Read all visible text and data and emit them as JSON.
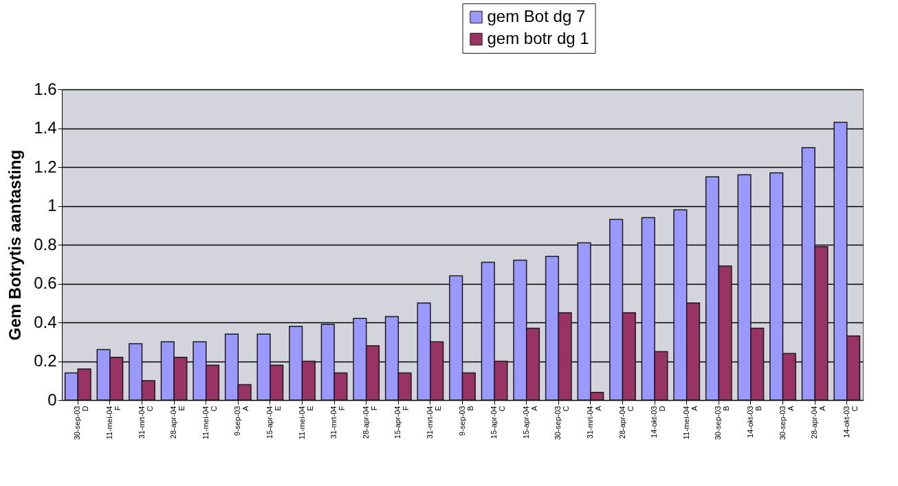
{
  "chart_data": {
    "type": "bar",
    "ylabel": "Gem Botrytis aantasting",
    "categories": [
      "30-sep-03\nD",
      "11-mei-04\nF",
      "31-mrt-04\nC",
      "28-apr-04\nE",
      "11-mei-04\nC",
      "9-sep-03\nA",
      "15-apr-04\nE",
      "11-mei-04\nE",
      "31-mrt-04\nF",
      "28-apr-04\nF",
      "15-apr-04\nF",
      "31-mrt-04\nE",
      "9-sep-03\nB",
      "15-apr-04\nC",
      "15-apr-04\nA",
      "30-sep-03\nC",
      "31-mrt-04\nA",
      "28-apr-04\nC",
      "14-okt-03\nD",
      "11-mei-04\nA",
      "30-sep-03\nB",
      "14-okt-03\nB",
      "30-sep-03\nA",
      "28-apr-04\nA",
      "14-okt-03\nC"
    ],
    "series": [
      {
        "name": "gem Bot dg 7",
        "color": "#9999ff",
        "values": [
          0.14,
          0.26,
          0.29,
          0.3,
          0.3,
          0.34,
          0.34,
          0.38,
          0.39,
          0.42,
          0.43,
          0.5,
          0.64,
          0.71,
          0.72,
          0.74,
          0.81,
          0.93,
          0.94,
          0.98,
          1.15,
          1.16,
          1.17,
          1.3,
          1.43
        ]
      },
      {
        "name": "gem botr dg 1",
        "color": "#993366",
        "values": [
          0.16,
          0.22,
          0.1,
          0.22,
          0.18,
          0.08,
          0.18,
          0.2,
          0.14,
          0.28,
          0.14,
          0.3,
          0.14,
          0.2,
          0.37,
          0.45,
          0.04,
          0.45,
          0.25,
          0.5,
          0.69,
          0.37,
          0.24,
          0.79,
          0.33
        ]
      }
    ],
    "ylim": [
      0,
      1.6
    ],
    "yticks": [
      0,
      0.2,
      0.4,
      0.6,
      0.8,
      1,
      1.2,
      1.4,
      1.6
    ],
    "grid": "y",
    "legend": "top"
  }
}
